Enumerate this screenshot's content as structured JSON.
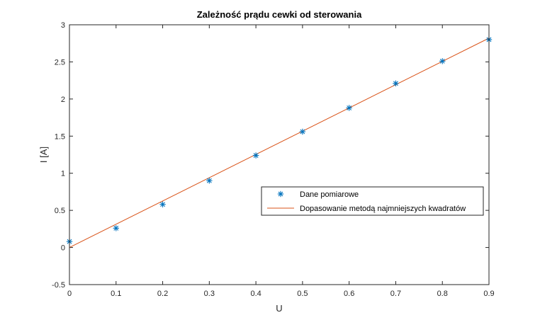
{
  "chart_data": {
    "type": "scatter",
    "title": "Zależność prądu cewki od sterowania",
    "xlabel": "U",
    "ylabel": "I [A]",
    "xlim": [
      0,
      0.9
    ],
    "ylim": [
      -0.5,
      3
    ],
    "xticks": [
      "0",
      "0.1",
      "0.2",
      "0.3",
      "0.4",
      "0.5",
      "0.6",
      "0.7",
      "0.8",
      "0.9"
    ],
    "yticks": [
      "-0.5",
      "0",
      "0.5",
      "1",
      "1.5",
      "2",
      "2.5",
      "3"
    ],
    "grid": false,
    "legend_position": "center-right",
    "series": [
      {
        "name": "Dane pomiarowe",
        "kind": "scatter",
        "marker": "asterisk",
        "color": "#0072BD",
        "x": [
          0,
          0.1,
          0.2,
          0.3,
          0.4,
          0.5,
          0.6,
          0.7,
          0.8,
          0.9
        ],
        "y": [
          0.08,
          0.26,
          0.58,
          0.9,
          1.24,
          1.56,
          1.88,
          2.21,
          2.51,
          2.8
        ]
      },
      {
        "name": "Dopasowanie metodą najmniejszych kwadratów",
        "kind": "line",
        "color": "#D95319",
        "x": [
          0,
          0.9
        ],
        "y": [
          0.0,
          2.82
        ]
      }
    ]
  }
}
